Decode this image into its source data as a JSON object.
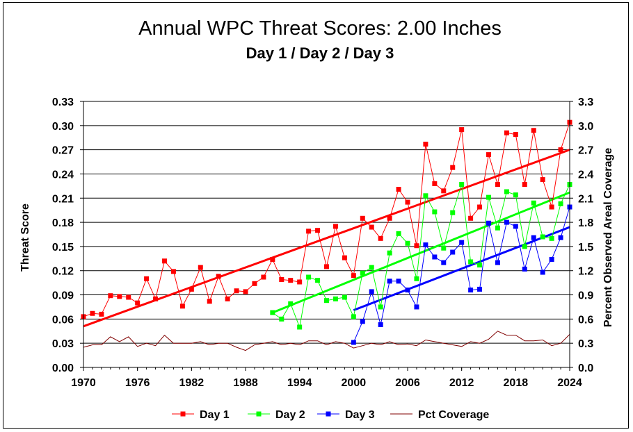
{
  "chart_data": {
    "type": "line",
    "title": "Annual WPC Threat Scores:  2.00 Inches",
    "subtitle": "Day 1 / Day 2 / Day 3",
    "ylabel": "Threat Score",
    "y2label": "Percent Observed Areal Coverage",
    "xlim": [
      1970,
      2024
    ],
    "ylim": [
      0,
      0.33
    ],
    "y2lim": [
      0,
      3.3
    ],
    "x_ticks": [
      "1970",
      "1976",
      "1982",
      "1988",
      "1994",
      "2000",
      "2006",
      "2012",
      "2018",
      "2024"
    ],
    "y_ticks": [
      "0.00",
      "0.03",
      "0.06",
      "0.09",
      "0.12",
      "0.15",
      "0.18",
      "0.21",
      "0.24",
      "0.27",
      "0.30",
      "0.33"
    ],
    "y2_ticks": [
      "0.0",
      "0.3",
      "0.6",
      "0.9",
      "1.2",
      "1.5",
      "1.8",
      "2.1",
      "2.4",
      "2.7",
      "3.0",
      "3.3"
    ],
    "grid": "horizontal",
    "legend_position": "bottom",
    "series": [
      {
        "name": "Day 1",
        "color": "#ff0000",
        "marker": "square",
        "x": [
          1970,
          1971,
          1972,
          1973,
          1974,
          1975,
          1976,
          1977,
          1978,
          1979,
          1980,
          1981,
          1982,
          1983,
          1984,
          1985,
          1986,
          1987,
          1988,
          1989,
          1990,
          1991,
          1992,
          1993,
          1994,
          1995,
          1996,
          1997,
          1998,
          1999,
          2000,
          2001,
          2002,
          2003,
          2004,
          2005,
          2006,
          2007,
          2008,
          2009,
          2010,
          2011,
          2012,
          2013,
          2014,
          2015,
          2016,
          2017,
          2018,
          2019,
          2020,
          2021,
          2022,
          2023,
          2024
        ],
        "values": [
          0.063,
          0.067,
          0.066,
          0.089,
          0.088,
          0.087,
          0.08,
          0.11,
          0.085,
          0.132,
          0.119,
          0.076,
          0.097,
          0.124,
          0.082,
          0.113,
          0.085,
          0.095,
          0.094,
          0.104,
          0.112,
          0.134,
          0.109,
          0.108,
          0.106,
          0.169,
          0.17,
          0.125,
          0.175,
          0.136,
          0.114,
          0.185,
          0.174,
          0.16,
          0.185,
          0.221,
          0.205,
          0.151,
          0.277,
          0.228,
          0.219,
          0.248,
          0.295,
          0.185,
          0.199,
          0.264,
          0.227,
          0.291,
          0.289,
          0.227,
          0.294,
          0.233,
          0.199,
          0.27,
          0.304
        ],
        "trend": [
          1970,
          0.051,
          2024,
          0.27
        ]
      },
      {
        "name": "Day 2",
        "color": "#00ff00",
        "marker": "square",
        "x": [
          1991,
          1992,
          1993,
          1994,
          1995,
          1996,
          1997,
          1998,
          1999,
          2000,
          2001,
          2002,
          2003,
          2004,
          2005,
          2006,
          2007,
          2008,
          2009,
          2010,
          2011,
          2012,
          2013,
          2014,
          2015,
          2016,
          2017,
          2018,
          2019,
          2020,
          2021,
          2022,
          2023,
          2024
        ],
        "values": [
          0.068,
          0.06,
          0.079,
          0.05,
          0.112,
          0.108,
          0.083,
          0.085,
          0.087,
          0.063,
          0.117,
          0.124,
          0.075,
          0.142,
          0.166,
          0.154,
          0.11,
          0.213,
          0.193,
          0.148,
          0.192,
          0.227,
          0.131,
          0.127,
          0.211,
          0.173,
          0.218,
          0.214,
          0.15,
          0.204,
          0.162,
          0.16,
          0.203,
          0.227
        ],
        "trend": [
          1991,
          0.068,
          2024,
          0.217
        ]
      },
      {
        "name": "Day 3",
        "color": "#0000ff",
        "marker": "square",
        "x": [
          2000,
          2001,
          2002,
          2003,
          2004,
          2005,
          2006,
          2007,
          2008,
          2009,
          2010,
          2011,
          2012,
          2013,
          2014,
          2015,
          2016,
          2017,
          2018,
          2019,
          2020,
          2021,
          2022,
          2023,
          2024
        ],
        "values": [
          0.031,
          0.057,
          0.094,
          0.053,
          0.107,
          0.107,
          0.096,
          0.075,
          0.152,
          0.137,
          0.13,
          0.143,
          0.155,
          0.096,
          0.097,
          0.179,
          0.13,
          0.18,
          0.175,
          0.122,
          0.161,
          0.118,
          0.134,
          0.161,
          0.199
        ],
        "trend": [
          2000,
          0.071,
          2024,
          0.174
        ]
      },
      {
        "name": "Pct Coverage",
        "color": "#800000",
        "marker": "none",
        "axis": "right",
        "x": [
          1970,
          1971,
          1972,
          1973,
          1974,
          1975,
          1976,
          1977,
          1978,
          1979,
          1980,
          1981,
          1982,
          1983,
          1984,
          1985,
          1986,
          1987,
          1988,
          1989,
          1990,
          1991,
          1992,
          1993,
          1994,
          1995,
          1996,
          1997,
          1998,
          1999,
          2000,
          2001,
          2002,
          2003,
          2004,
          2005,
          2006,
          2007,
          2008,
          2009,
          2010,
          2011,
          2012,
          2013,
          2014,
          2015,
          2016,
          2017,
          2018,
          2019,
          2020,
          2021,
          2022,
          2023,
          2024
        ],
        "values": [
          0.25,
          0.28,
          0.28,
          0.38,
          0.32,
          0.38,
          0.26,
          0.3,
          0.27,
          0.4,
          0.3,
          0.3,
          0.3,
          0.32,
          0.28,
          0.3,
          0.3,
          0.25,
          0.21,
          0.28,
          0.3,
          0.32,
          0.28,
          0.3,
          0.28,
          0.33,
          0.33,
          0.28,
          0.32,
          0.3,
          0.24,
          0.27,
          0.3,
          0.28,
          0.32,
          0.28,
          0.29,
          0.27,
          0.34,
          0.32,
          0.3,
          0.28,
          0.26,
          0.32,
          0.3,
          0.35,
          0.45,
          0.4,
          0.4,
          0.33,
          0.33,
          0.34,
          0.27,
          0.3,
          0.41
        ]
      }
    ]
  }
}
